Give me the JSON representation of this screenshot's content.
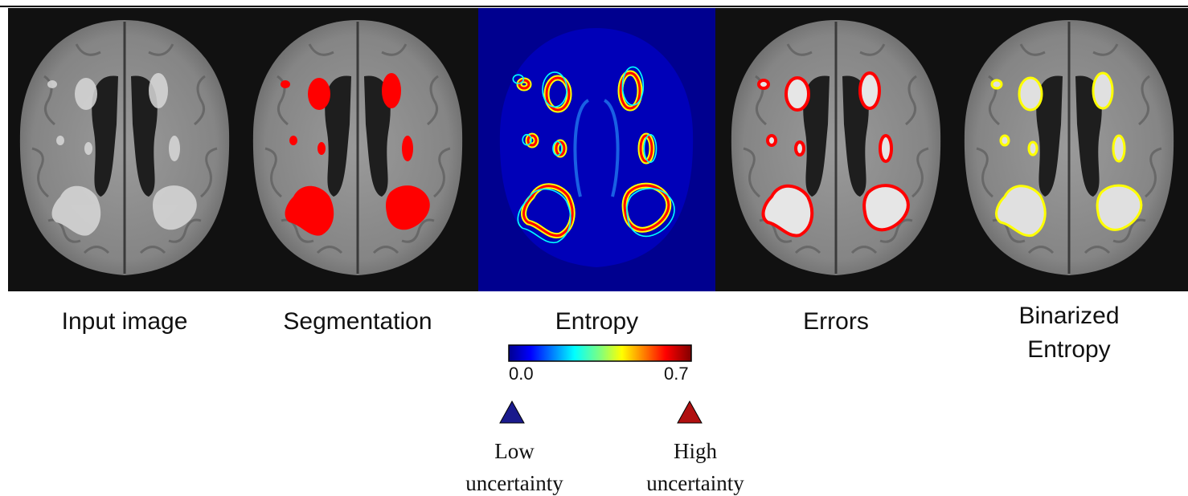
{
  "panels": [
    {
      "label": "Input image"
    },
    {
      "label": "Segmentation"
    },
    {
      "label": "Entropy"
    },
    {
      "label": "Errors"
    },
    {
      "label": "Binarized Entropy"
    }
  ],
  "colorbar": {
    "min_label": "0.0",
    "max_label": "0.7"
  },
  "legend": {
    "low": "Low uncertainty",
    "high": "High uncertainty"
  }
}
